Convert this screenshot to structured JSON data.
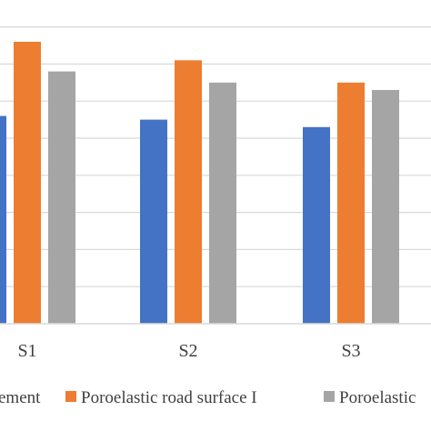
{
  "chart_data": {
    "type": "bar",
    "categories": [
      "S1",
      "S2",
      "S3"
    ],
    "series": [
      {
        "name": "ement",
        "color": "#4472C4",
        "values": [
          5.6,
          5.5,
          5.3
        ]
      },
      {
        "name": "Poroelastic road surface I",
        "color": "#ED7D31",
        "values": [
          7.6,
          7.1,
          6.5
        ]
      },
      {
        "name": "Poroelastic",
        "color": "#A5A5A5",
        "values": [
          6.8,
          6.5,
          6.3
        ]
      }
    ],
    "ylim": [
      0,
      8.5
    ],
    "y_gridlines": [
      1,
      2,
      3,
      4,
      5,
      6,
      7,
      8
    ],
    "grid": true,
    "legend_position": "bottom"
  }
}
